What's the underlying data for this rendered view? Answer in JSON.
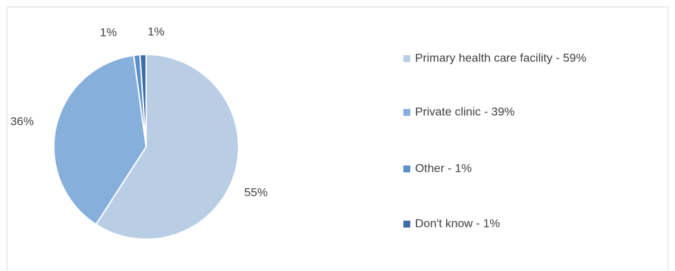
{
  "chart_data": {
    "type": "pie",
    "categories": [
      "Primary health care facility - 59%",
      "Private clinic - 39%",
      "Other - 1%",
      "Don't know - 1%"
    ],
    "values": [
      55,
      36,
      1,
      1
    ],
    "value_labels": [
      "55%",
      "36%",
      "1%",
      "1%"
    ],
    "colors": [
      "#b9cde5",
      "#87afdc",
      "#5b8fc8",
      "#3e6ea7"
    ],
    "legend": "right"
  }
}
